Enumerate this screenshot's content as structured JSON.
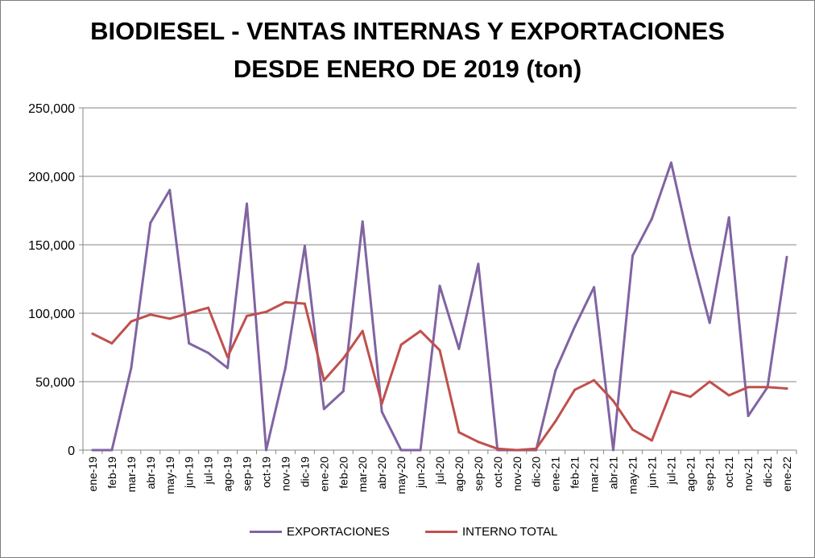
{
  "chart_data": {
    "type": "line",
    "title": [
      "BIODIESEL - VENTAS INTERNAS Y EXPORTACIONES",
      "DESDE ENERO DE 2019 (ton)"
    ],
    "xlabel": "",
    "ylabel": "",
    "ylim": [
      0,
      250000
    ],
    "yticks": [
      0,
      50000,
      100000,
      150000,
      200000,
      250000
    ],
    "ytick_labels": [
      "0",
      "50,000",
      "100,000",
      "150,000",
      "200,000",
      "250,000"
    ],
    "grid": true,
    "legend": "bottom",
    "categories": [
      "ene-19",
      "feb-19",
      "mar-19",
      "abr-19",
      "may-19",
      "jun-19",
      "jul-19",
      "ago-19",
      "sep-19",
      "oct-19",
      "nov-19",
      "dic-19",
      "ene-20",
      "feb-20",
      "mar-20",
      "abr-20",
      "may-20",
      "jun-20",
      "jul-20",
      "ago-20",
      "sep-20",
      "oct-20",
      "nov-20",
      "dic-20",
      "ene-21",
      "feb-21",
      "mar-21",
      "abr-21",
      "may-21",
      "jun-21",
      "jul-21",
      "ago-21",
      "sep-21",
      "oct-21",
      "nov-21",
      "dic-21",
      "ene-22"
    ],
    "series": [
      {
        "name": "EXPORTACIONES",
        "color": "#8064a2",
        "values": [
          0,
          0,
          60000,
          166000,
          190000,
          78000,
          71000,
          60000,
          180000,
          0,
          60000,
          149000,
          30000,
          43000,
          167000,
          28000,
          0,
          0,
          120000,
          74000,
          136000,
          0,
          0,
          0,
          58000,
          90000,
          119000,
          0,
          142000,
          169000,
          210000,
          147000,
          93000,
          170000,
          25000,
          46000,
          141000
        ]
      },
      {
        "name": "INTERNO TOTAL",
        "color": "#c0504d",
        "values": [
          85000,
          78000,
          94000,
          99000,
          96000,
          100000,
          104000,
          68000,
          98000,
          101000,
          108000,
          107000,
          51000,
          67000,
          87000,
          34000,
          77000,
          87000,
          73000,
          13000,
          6000,
          1000,
          0,
          1000,
          21000,
          44000,
          51000,
          36000,
          15000,
          7000,
          43000,
          39000,
          50000,
          40000,
          46000,
          46000,
          45000
        ]
      }
    ]
  }
}
